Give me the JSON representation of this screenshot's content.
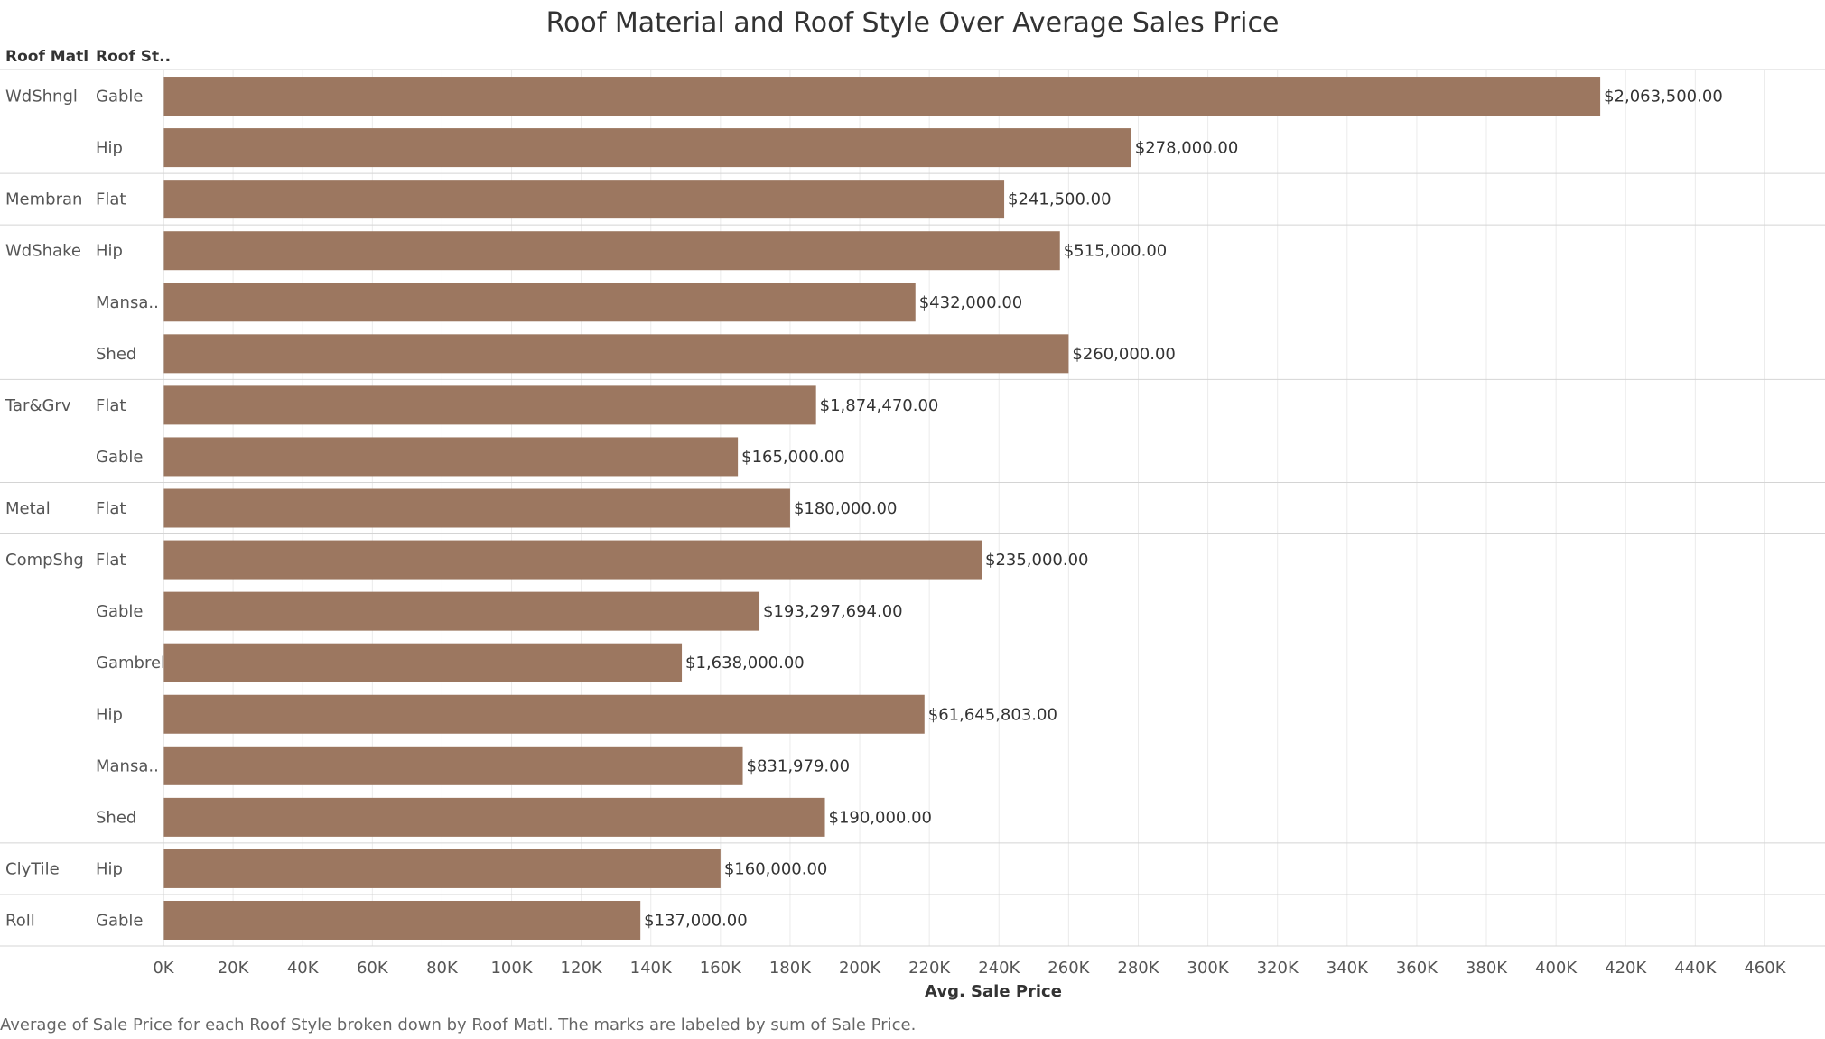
{
  "title": "Roof Material and Roof Style Over Average Sales Price",
  "headers": {
    "material": "Roof Matl",
    "style": "Roof St.."
  },
  "caption": "Average of Sale Price for each Roof Style broken down by Roof Matl.  The marks are labeled by sum of Sale Price.",
  "colors": {
    "bar": "#9c7760",
    "grid": "#ebebeb",
    "separator": "#d4d4d4",
    "text": "#555555"
  },
  "chart_data": {
    "type": "bar",
    "orientation": "horizontal",
    "xlabel": "Avg. Sale Price",
    "xlim": [
      0,
      475000
    ],
    "xticks": [
      "0K",
      "20K",
      "40K",
      "60K",
      "80K",
      "100K",
      "120K",
      "140K",
      "160K",
      "180K",
      "200K",
      "220K",
      "240K",
      "260K",
      "280K",
      "300K",
      "320K",
      "340K",
      "360K",
      "380K",
      "400K",
      "420K",
      "440K",
      "460K"
    ],
    "grid": true,
    "groups": [
      {
        "material": "WdShngl",
        "rows": [
          {
            "style": "Gable",
            "value": 412700,
            "label": "$2,063,500.00"
          },
          {
            "style": "Hip",
            "value": 278000,
            "label": "$278,000.00"
          }
        ]
      },
      {
        "material": "Membran",
        "rows": [
          {
            "style": "Flat",
            "value": 241500,
            "label": "$241,500.00"
          }
        ]
      },
      {
        "material": "WdShake",
        "rows": [
          {
            "style": "Hip",
            "value": 257500,
            "label": "$515,000.00"
          },
          {
            "style": "Mansa..",
            "value": 216000,
            "label": "$432,000.00"
          },
          {
            "style": "Shed",
            "value": 260000,
            "label": "$260,000.00"
          }
        ]
      },
      {
        "material": "Tar&Grv",
        "rows": [
          {
            "style": "Flat",
            "value": 187447,
            "label": "$1,874,470.00"
          },
          {
            "style": "Gable",
            "value": 165000,
            "label": "$165,000.00"
          }
        ]
      },
      {
        "material": "Metal",
        "rows": [
          {
            "style": "Flat",
            "value": 180000,
            "label": "$180,000.00"
          }
        ]
      },
      {
        "material": "CompShg",
        "rows": [
          {
            "style": "Flat",
            "value": 235000,
            "label": "$235,000.00"
          },
          {
            "style": "Gable",
            "value": 171200,
            "label": "$193,297,694.00"
          },
          {
            "style": "Gambrel",
            "value": 148900,
            "label": "$1,638,000.00"
          },
          {
            "style": "Hip",
            "value": 218600,
            "label": "$61,645,803.00"
          },
          {
            "style": "Mansa..",
            "value": 166400,
            "label": "$831,979.00"
          },
          {
            "style": "Shed",
            "value": 190000,
            "label": "$190,000.00"
          }
        ]
      },
      {
        "material": "ClyTile",
        "rows": [
          {
            "style": "Hip",
            "value": 160000,
            "label": "$160,000.00"
          }
        ]
      },
      {
        "material": "Roll",
        "rows": [
          {
            "style": "Gable",
            "value": 137000,
            "label": "$137,000.00"
          }
        ]
      }
    ]
  }
}
